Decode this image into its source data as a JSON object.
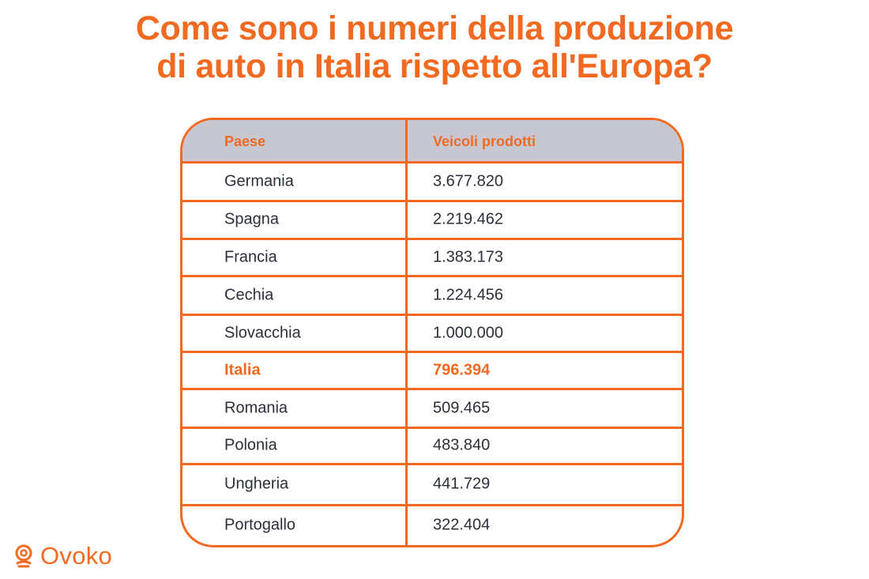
{
  "title": {
    "line1": "Come sono i numeri della produzione",
    "line2": "di auto in Italia rispetto all'Europa?"
  },
  "colors": {
    "accent": "#f26a21",
    "header_bg": "#c6c7d1",
    "text": "#2b2f3a"
  },
  "chart_data": {
    "type": "table",
    "columns": [
      "Paese",
      "Veicoli prodotti"
    ],
    "rows": [
      {
        "paese": "Germania",
        "veicoli": "3.677.820",
        "highlight": false
      },
      {
        "paese": "Spagna",
        "veicoli": "2.219.462",
        "highlight": false
      },
      {
        "paese": "Francia",
        "veicoli": "1.383.173",
        "highlight": false
      },
      {
        "paese": "Cechia",
        "veicoli": "1.224.456",
        "highlight": false
      },
      {
        "paese": "Slovacchia",
        "veicoli": "1.000.000",
        "highlight": false
      },
      {
        "paese": "Italia",
        "veicoli": "796.394",
        "highlight": true
      },
      {
        "paese": "Romania",
        "veicoli": "509.465",
        "highlight": false
      },
      {
        "paese": "Polonia",
        "veicoli": "483.840",
        "highlight": false
      },
      {
        "paese": "Ungheria",
        "veicoli": "441.729",
        "highlight": false
      },
      {
        "paese": "Portogallo",
        "veicoli": "322.404",
        "highlight": false
      }
    ]
  },
  "logo": {
    "text": "Ovoko",
    "icon": "ovoko-logo-icon"
  }
}
